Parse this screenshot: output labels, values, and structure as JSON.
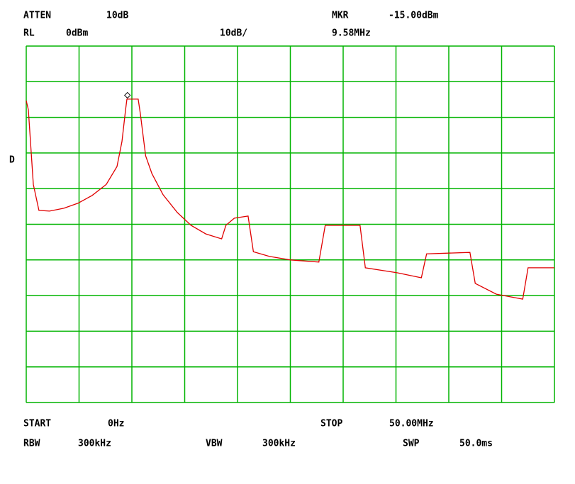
{
  "chart_data": {
    "type": "line",
    "annotations": [
      "ATTEN",
      "10dB",
      "MKR",
      "-15.00dBm",
      "RL",
      "0dBm",
      "10dB/",
      "9.58MHz",
      "D",
      "START",
      "0Hz",
      "STOP",
      "50.00MHz",
      "RBW",
      "300kHz",
      "VBW",
      "300kHz",
      "SWP",
      "50.0ms"
    ],
    "xlim": [
      0,
      50
    ],
    "ylim": [
      -100,
      0
    ],
    "grid": true,
    "grid_divisions": {
      "x": 10,
      "y": 10
    },
    "grid_color": "#00b400",
    "marker": {
      "x": 9.58,
      "y": -15
    },
    "x": [
      0,
      0.2,
      0.67,
      1.2,
      2.2,
      3.56,
      4.9,
      6.24,
      7.58,
      8.59,
      9.06,
      9.4,
      9.53,
      10.6,
      10.8,
      11.3,
      11.9,
      12.95,
      14.3,
      15.6,
      17,
      18.5,
      18.9,
      19.7,
      21,
      21.5,
      23,
      25,
      27.7,
      28.3,
      31.6,
      32.1,
      35.1,
      37.4,
      37.9,
      42,
      42.5,
      44.5,
      47,
      47.5,
      50
    ],
    "series": [
      {
        "color": "#e00000",
        "values": [
          -15.3,
          -17.9,
          -38.8,
          -46.1,
          -46.3,
          -45.5,
          -44.1,
          -41.9,
          -38.8,
          -33.8,
          -26.8,
          -17.9,
          -14.9,
          -14.9,
          -18.9,
          -30.8,
          -35.8,
          -41.7,
          -46.7,
          -50.3,
          -52.7,
          -54.1,
          -50.3,
          -48.3,
          -47.7,
          -57.7,
          -59,
          -60,
          -60.6,
          -50.3,
          -50.3,
          -62.2,
          -63.6,
          -65,
          -58.3,
          -57.9,
          -66.6,
          -69.6,
          -71,
          -62.2,
          -62.2
        ]
      }
    ]
  }
}
